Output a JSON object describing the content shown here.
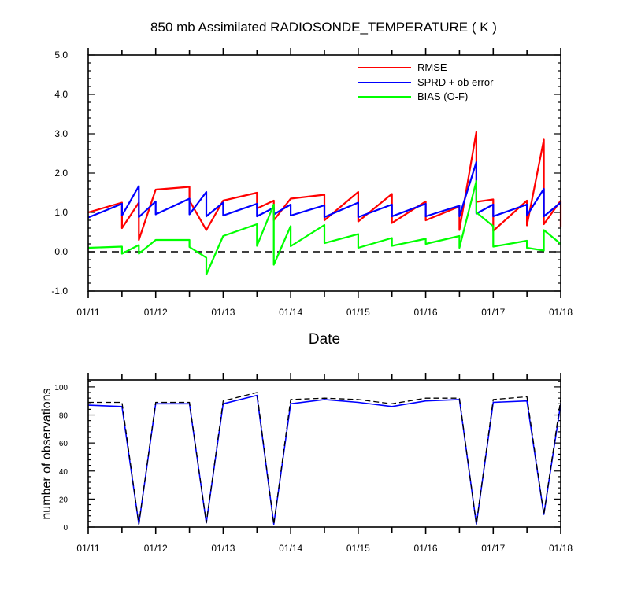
{
  "chart_data": [
    {
      "type": "line",
      "title": "850 mb Assimilated RADIOSONDE_TEMPERATURE ( K )",
      "xlabel": "Date",
      "ylabel": "",
      "x_ticks": [
        "01/11",
        "01/12",
        "01/13",
        "01/14",
        "01/15",
        "01/16",
        "01/17",
        "01/18"
      ],
      "x_range_days": [
        11,
        18
      ],
      "ylim": [
        -1.0,
        5.0
      ],
      "y_ticks": [
        "-1.0",
        "0.0",
        "1.0",
        "2.0",
        "3.0",
        "4.0",
        "5.0"
      ],
      "legend_position": "top-right",
      "reference_line": 0.0,
      "series": [
        {
          "name": "RMSE",
          "color": "#ff0000",
          "x": [
            11.0,
            11.5,
            11.5,
            11.75,
            11.75,
            12.0,
            12.5,
            12.5,
            12.75,
            12.75,
            13.0,
            13.5,
            13.5,
            13.75,
            13.75,
            14.0,
            14.5,
            14.5,
            15.0,
            15.0,
            15.5,
            15.5,
            16.0,
            16.0,
            16.5,
            16.5,
            16.75,
            16.75,
            17.0,
            17.0,
            17.5,
            17.5,
            17.75,
            17.75,
            18.0,
            18.0
          ],
          "values": [
            1.0,
            1.25,
            0.6,
            1.25,
            0.3,
            1.58,
            1.65,
            1.3,
            0.55,
            0.55,
            1.3,
            1.5,
            1.1,
            1.3,
            0.8,
            1.35,
            1.45,
            0.8,
            1.52,
            0.77,
            1.47,
            0.73,
            1.28,
            0.8,
            1.15,
            0.55,
            3.05,
            1.27,
            1.33,
            0.53,
            1.3,
            0.67,
            2.85,
            0.7,
            1.3,
            0.62
          ]
        },
        {
          "name": "SPRD + ob error",
          "color": "#0000ff",
          "x": [
            11.0,
            11.5,
            11.5,
            11.75,
            11.75,
            12.0,
            12.0,
            12.5,
            12.5,
            12.75,
            12.75,
            13.0,
            13.0,
            13.5,
            13.5,
            13.75,
            13.75,
            14.0,
            14.0,
            14.5,
            14.5,
            15.0,
            15.0,
            15.5,
            15.5,
            16.0,
            16.0,
            16.5,
            16.5,
            16.75,
            16.75,
            17.0,
            17.0,
            17.5,
            17.5,
            17.75,
            17.75,
            18.0
          ],
          "values": [
            0.87,
            1.22,
            0.92,
            1.67,
            0.88,
            1.28,
            0.95,
            1.35,
            0.95,
            1.52,
            0.9,
            1.25,
            0.92,
            1.22,
            0.9,
            1.12,
            0.95,
            1.2,
            0.92,
            1.18,
            0.88,
            1.25,
            0.88,
            1.2,
            0.9,
            1.22,
            0.9,
            1.17,
            0.9,
            2.28,
            0.97,
            1.2,
            0.9,
            1.2,
            0.92,
            1.6,
            0.9,
            1.25
          ]
        },
        {
          "name": "BIAS (O-F)",
          "color": "#00ff00",
          "x": [
            11.0,
            11.5,
            11.5,
            11.75,
            11.75,
            12.0,
            12.5,
            12.5,
            12.75,
            12.75,
            13.0,
            13.5,
            13.5,
            13.75,
            13.75,
            14.0,
            14.0,
            14.5,
            14.5,
            15.0,
            15.0,
            15.5,
            15.5,
            16.0,
            16.0,
            16.5,
            16.5,
            16.75,
            16.75,
            17.0,
            17.0,
            17.5,
            17.5,
            17.75,
            17.75,
            18.0
          ],
          "values": [
            0.1,
            0.13,
            -0.05,
            0.17,
            -0.05,
            0.3,
            0.3,
            0.12,
            -0.15,
            -0.58,
            0.4,
            0.7,
            0.15,
            1.2,
            -0.33,
            0.65,
            0.14,
            0.68,
            0.22,
            0.45,
            0.1,
            0.35,
            0.15,
            0.33,
            0.2,
            0.4,
            0.1,
            1.8,
            1.0,
            0.65,
            0.13,
            0.28,
            0.1,
            0.03,
            0.55,
            0.2
          ]
        }
      ]
    },
    {
      "type": "line",
      "title": "",
      "xlabel": "",
      "ylabel": "number of observations",
      "x_ticks": [
        "01/11",
        "01/12",
        "01/13",
        "01/14",
        "01/15",
        "01/16",
        "01/17",
        "01/18"
      ],
      "x_range_days": [
        11,
        18
      ],
      "ylim": [
        0,
        105
      ],
      "y_ticks": [
        "0",
        "20",
        "40",
        "60",
        "80",
        "100"
      ],
      "series": [
        {
          "name": "",
          "color": "#0000ff",
          "x": [
            11.0,
            11.5,
            11.75,
            12.0,
            12.5,
            12.75,
            13.0,
            13.5,
            13.75,
            14.0,
            14.5,
            15.0,
            15.5,
            16.0,
            16.5,
            16.75,
            17.0,
            17.5,
            17.75,
            18.0
          ],
          "values": [
            87,
            86,
            2,
            88,
            88,
            3,
            88,
            94,
            2,
            88,
            91,
            89,
            86,
            90,
            91,
            2,
            89,
            90,
            9,
            88
          ]
        },
        {
          "name": "",
          "color": "#000000",
          "dashed": true,
          "x": [
            11.0,
            11.5,
            11.75,
            12.0,
            12.5,
            12.75,
            13.0,
            13.5,
            13.75,
            14.0,
            14.5,
            15.0,
            15.5,
            16.0,
            16.5,
            16.75,
            17.0,
            17.5,
            17.75,
            18.0
          ],
          "values": [
            89,
            89,
            2,
            89,
            89,
            3,
            90,
            96,
            2,
            91,
            92,
            91,
            88,
            92,
            92,
            2,
            91,
            93,
            9,
            91
          ]
        }
      ]
    }
  ]
}
